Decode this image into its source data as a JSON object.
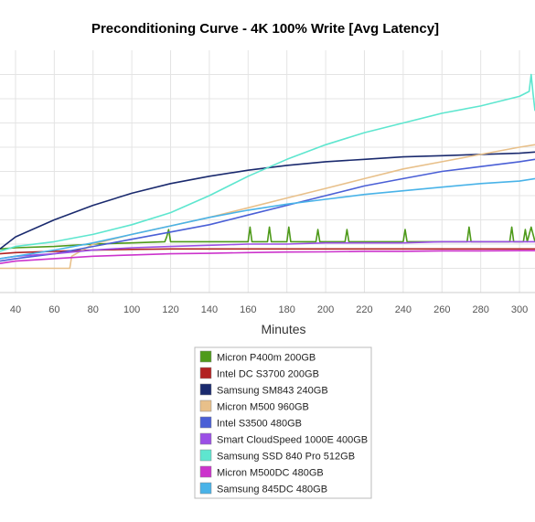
{
  "chart_data": {
    "type": "line",
    "title": "Preconditioning Curve - 4K 100% Write [Avg Latency]",
    "xlabel": "Minutes",
    "ylabel": "",
    "xlim": [
      32,
      308
    ],
    "ylim": [
      0,
      10
    ],
    "x_ticks": [
      40,
      60,
      80,
      100,
      120,
      140,
      160,
      180,
      200,
      220,
      240,
      260,
      280,
      300
    ],
    "y_tick_values": [
      1,
      2,
      3,
      4,
      5,
      6,
      7,
      8,
      9
    ],
    "grid": true,
    "legend_position": "bottom-center",
    "series": [
      {
        "name": "Micron P400m 200GB",
        "color": "#4e9a1a",
        "x": [
          32,
          40,
          60,
          80,
          100,
          117,
          118,
          119,
          120,
          140,
          160,
          161,
          162,
          163,
          170,
          171,
          172,
          180,
          181,
          182,
          190,
          195,
          196,
          197,
          200,
          210,
          211,
          212,
          220,
          240,
          241,
          242,
          250,
          260,
          270,
          273,
          274,
          275,
          280,
          295,
          296,
          297,
          300,
          302,
          303,
          304,
          306,
          308
        ],
        "values": [
          1.8,
          1.85,
          1.9,
          2.0,
          2.05,
          2.1,
          2.3,
          2.6,
          2.1,
          2.1,
          2.1,
          2.7,
          2.1,
          2.1,
          2.1,
          2.7,
          2.1,
          2.1,
          2.7,
          2.1,
          2.1,
          2.1,
          2.6,
          2.1,
          2.1,
          2.1,
          2.6,
          2.1,
          2.1,
          2.1,
          2.6,
          2.1,
          2.1,
          2.1,
          2.1,
          2.1,
          2.7,
          2.1,
          2.1,
          2.1,
          2.7,
          2.1,
          2.1,
          2.1,
          2.6,
          2.1,
          2.7,
          2.1
        ]
      },
      {
        "name": "Intel DC S3700 200GB",
        "color": "#b22222",
        "x": [
          32,
          40,
          60,
          80,
          100,
          120,
          140,
          160,
          180,
          200,
          220,
          240,
          260,
          280,
          300,
          308
        ],
        "values": [
          1.6,
          1.65,
          1.7,
          1.75,
          1.78,
          1.8,
          1.8,
          1.8,
          1.8,
          1.8,
          1.8,
          1.8,
          1.8,
          1.8,
          1.8,
          1.8
        ]
      },
      {
        "name": "Samsung SM843 240GB",
        "color": "#1a2a6e",
        "x": [
          32,
          40,
          60,
          80,
          100,
          120,
          140,
          160,
          180,
          200,
          220,
          240,
          260,
          280,
          300,
          308
        ],
        "values": [
          1.8,
          2.3,
          3.0,
          3.6,
          4.1,
          4.5,
          4.8,
          5.05,
          5.25,
          5.4,
          5.5,
          5.6,
          5.65,
          5.7,
          5.75,
          5.8
        ]
      },
      {
        "name": "Micron M500 960GB",
        "color": "#e8c08a",
        "x": [
          32,
          40,
          60,
          68,
          69,
          80,
          100,
          120,
          140,
          160,
          180,
          200,
          220,
          240,
          260,
          280,
          300,
          308
        ],
        "values": [
          1.0,
          1.0,
          1.0,
          1.0,
          1.5,
          2.0,
          2.4,
          2.75,
          3.1,
          3.5,
          3.9,
          4.3,
          4.7,
          5.1,
          5.4,
          5.7,
          6.0,
          6.1
        ]
      },
      {
        "name": "Intel S3500 480GB",
        "color": "#4a5fd6",
        "x": [
          32,
          40,
          60,
          80,
          100,
          120,
          140,
          160,
          180,
          200,
          220,
          240,
          260,
          280,
          300,
          308
        ],
        "values": [
          1.3,
          1.4,
          1.6,
          1.9,
          2.2,
          2.5,
          2.8,
          3.2,
          3.6,
          4.0,
          4.4,
          4.7,
          5.0,
          5.2,
          5.4,
          5.5
        ]
      },
      {
        "name": "Smart CloudSpeed 1000E 400GB",
        "color": "#9b4fe6",
        "x": [
          32,
          40,
          60,
          80,
          100,
          120,
          140,
          160,
          180,
          200,
          220,
          240,
          260,
          280,
          300,
          308
        ],
        "values": [
          1.4,
          1.5,
          1.6,
          1.75,
          1.85,
          1.9,
          1.95,
          2.0,
          2.0,
          2.05,
          2.05,
          2.05,
          2.1,
          2.1,
          2.1,
          2.1
        ]
      },
      {
        "name": "Samsung SSD 840 Pro 512GB",
        "color": "#5ee6cf",
        "x": [
          32,
          40,
          60,
          80,
          100,
          120,
          140,
          160,
          180,
          200,
          220,
          240,
          260,
          280,
          300,
          305,
          306,
          307,
          308
        ],
        "values": [
          1.7,
          1.9,
          2.1,
          2.4,
          2.8,
          3.3,
          4.0,
          4.8,
          5.5,
          6.1,
          6.6,
          7.0,
          7.4,
          7.7,
          8.1,
          8.3,
          9.0,
          8.2,
          7.5
        ]
      },
      {
        "name": "Micron M500DC 480GB",
        "color": "#cc33cc",
        "x": [
          32,
          40,
          60,
          80,
          100,
          120,
          140,
          160,
          180,
          200,
          220,
          240,
          260,
          280,
          300,
          308
        ],
        "values": [
          1.2,
          1.3,
          1.4,
          1.5,
          1.55,
          1.6,
          1.62,
          1.65,
          1.67,
          1.68,
          1.7,
          1.7,
          1.72,
          1.72,
          1.73,
          1.73
        ]
      },
      {
        "name": "Samsung 845DC 480GB",
        "color": "#49b3e8",
        "x": [
          32,
          40,
          60,
          80,
          100,
          120,
          140,
          160,
          180,
          200,
          220,
          240,
          260,
          280,
          300,
          308
        ],
        "values": [
          1.4,
          1.5,
          1.75,
          2.05,
          2.4,
          2.75,
          3.1,
          3.4,
          3.65,
          3.85,
          4.05,
          4.2,
          4.35,
          4.5,
          4.6,
          4.7
        ]
      }
    ]
  }
}
